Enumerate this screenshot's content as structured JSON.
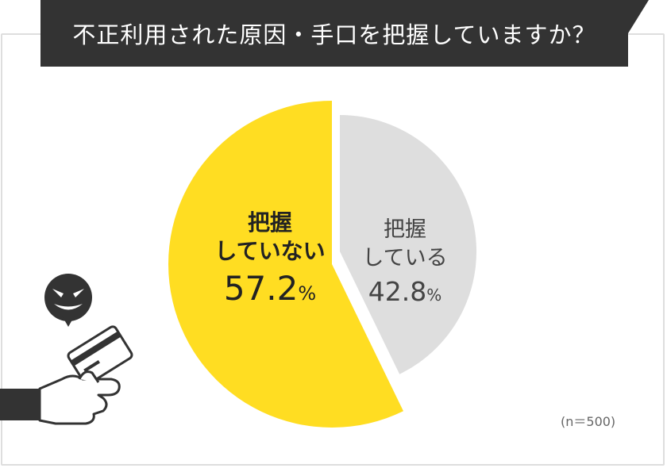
{
  "title": "不正利用された原因・手口を把握していますか？",
  "note": "(n＝500)",
  "colors": {
    "primary": "#FFDD22",
    "secondary": "#DEDEDE",
    "title_bg": "#333333"
  },
  "chart_data": {
    "type": "pie",
    "title": "不正利用された原因・手口を把握していますか？",
    "slices": [
      {
        "label_line1": "把握",
        "label_line2": "していない",
        "value": 57.2,
        "unit": "%",
        "color": "#FFDD22"
      },
      {
        "label_line1": "把握",
        "label_line2": "している",
        "value": 42.8,
        "unit": "%",
        "color": "#DEDEDE"
      }
    ],
    "n": 500
  },
  "icons": [
    "villain-face-icon",
    "hand-holding-card-icon"
  ]
}
